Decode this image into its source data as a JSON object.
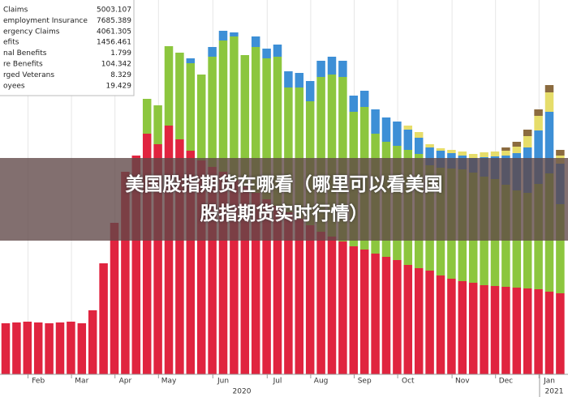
{
  "chart_data": {
    "type": "stacked_bar",
    "overlay_title": [
      "美国股指期货在哪看（哪里可以看美国",
      "股指期货实时行情）"
    ],
    "categories": [
      null,
      null,
      null,
      "Feb",
      null,
      null,
      null,
      "Mar",
      null,
      null,
      null,
      "Apr",
      null,
      null,
      null,
      "May",
      null,
      null,
      null,
      null,
      "Jun",
      null,
      null,
      null,
      null,
      "Jul",
      null,
      null,
      null,
      "Aug",
      null,
      null,
      null,
      "Sep",
      null,
      null,
      null,
      "Oct",
      null,
      null,
      null,
      null,
      "Nov",
      null,
      null,
      null,
      "Dec",
      null,
      null,
      null,
      "Jan",
      null
    ],
    "years": [
      "2020",
      "2021"
    ],
    "ylim": [
      0,
      23100
    ],
    "series": [
      {
        "name": "Claims",
        "legend_value": 5003.107,
        "color": "#e0243f",
        "values": [
          3150,
          3200,
          3250,
          3200,
          3150,
          3200,
          3250,
          3150,
          3950,
          6850,
          9350,
          12500,
          13500,
          14850,
          14200,
          15350,
          14500,
          13800,
          13200,
          12800,
          12500,
          12000,
          11600,
          11200,
          10800,
          10400,
          10000,
          9600,
          9200,
          8800,
          8500,
          8200,
          7900,
          7700,
          7450,
          7250,
          7050,
          6750,
          6550,
          6400,
          6100,
          5900,
          5750,
          5650,
          5500,
          5450,
          5400,
          5350,
          5300,
          5250,
          5100,
          5000
        ]
      },
      {
        "name": "employment Insurance",
        "legend_value": 7685.389,
        "color": "#8cc63e",
        "values": [
          0,
          0,
          0,
          0,
          0,
          0,
          0,
          0,
          0,
          0,
          0,
          0,
          0,
          2150,
          2400,
          4900,
          5350,
          5400,
          5300,
          6800,
          8100,
          8850,
          8100,
          9000,
          8700,
          9200,
          7700,
          8100,
          7650,
          9550,
          10000,
          10150,
          8300,
          8800,
          7400,
          7100,
          7050,
          7100,
          7050,
          6500,
          6650,
          6800,
          6900,
          6800,
          6700,
          6600,
          6300,
          6000,
          5900,
          6500,
          7300,
          5500
        ]
      },
      {
        "name": "ergency Claims",
        "legend_value": 4061.305,
        "color": "#3d8fd6",
        "values": [
          0,
          0,
          0,
          0,
          0,
          0,
          0,
          0,
          0,
          0,
          0,
          0,
          0,
          0,
          0,
          0,
          0,
          300,
          0,
          600,
          600,
          250,
          0,
          650,
          600,
          750,
          1000,
          900,
          1250,
          1000,
          1100,
          1000,
          1000,
          1000,
          1500,
          1500,
          1500,
          1250,
          1000,
          1100,
          1050,
          950,
          850,
          900,
          1200,
          1400,
          1800,
          2300,
          2800,
          3300,
          3800,
          2500
        ]
      },
      {
        "name": "efits",
        "legend_value": 1456.461,
        "color": "#e6dd6a",
        "values": [
          0,
          0,
          0,
          0,
          0,
          0,
          0,
          0,
          0,
          0,
          0,
          0,
          0,
          0,
          0,
          0,
          0,
          0,
          0,
          0,
          0,
          0,
          0,
          0,
          0,
          0,
          0,
          0,
          0,
          0,
          0,
          0,
          0,
          0,
          0,
          0,
          0,
          250,
          350,
          200,
          150,
          200,
          250,
          250,
          300,
          300,
          300,
          400,
          700,
          900,
          1200,
          500
        ]
      },
      {
        "name": "nal Benefits",
        "legend_value": 1.799,
        "color": "#9fd3ef",
        "values": [
          0,
          0,
          0,
          0,
          0,
          0,
          0,
          0,
          0,
          0,
          0,
          0,
          0,
          0,
          0,
          0,
          0,
          0,
          0,
          0,
          0,
          0,
          0,
          0,
          0,
          0,
          0,
          0,
          0,
          0,
          0,
          0,
          0,
          0,
          0,
          0,
          0,
          0,
          0,
          0,
          0,
          0,
          0,
          0,
          0,
          0,
          0,
          0,
          0,
          0,
          0,
          0
        ]
      },
      {
        "name": "re Benefits",
        "legend_value": 104.342,
        "color": "#8b6b3f",
        "values": [
          0,
          0,
          0,
          0,
          0,
          0,
          0,
          0,
          0,
          0,
          0,
          0,
          0,
          0,
          0,
          0,
          0,
          0,
          0,
          0,
          0,
          0,
          0,
          0,
          0,
          0,
          0,
          0,
          0,
          0,
          0,
          0,
          0,
          0,
          0,
          0,
          0,
          0,
          0,
          0,
          0,
          0,
          0,
          0,
          0,
          0,
          200,
          300,
          400,
          400,
          450,
          350
        ]
      },
      {
        "name": "rged Veterans",
        "legend_value": 8.329,
        "color": "#7a4c8f",
        "values": [
          0,
          0,
          0,
          0,
          0,
          0,
          0,
          0,
          0,
          0,
          0,
          0,
          0,
          0,
          0,
          0,
          0,
          0,
          0,
          0,
          0,
          0,
          0,
          0,
          0,
          0,
          0,
          0,
          0,
          0,
          0,
          0,
          0,
          0,
          0,
          0,
          0,
          0,
          0,
          0,
          0,
          0,
          0,
          0,
          0,
          0,
          0,
          0,
          0,
          0,
          0,
          0
        ]
      },
      {
        "name": "oyees",
        "legend_value": 19.429,
        "color": "#bfe3f5",
        "values": [
          0,
          0,
          0,
          0,
          0,
          0,
          0,
          0,
          0,
          0,
          0,
          0,
          0,
          0,
          0,
          0,
          0,
          0,
          0,
          0,
          0,
          0,
          0,
          0,
          0,
          0,
          0,
          0,
          0,
          0,
          0,
          0,
          0,
          0,
          0,
          0,
          0,
          0,
          0,
          0,
          0,
          0,
          0,
          0,
          0,
          0,
          0,
          0,
          0,
          0,
          0,
          0
        ]
      }
    ]
  }
}
